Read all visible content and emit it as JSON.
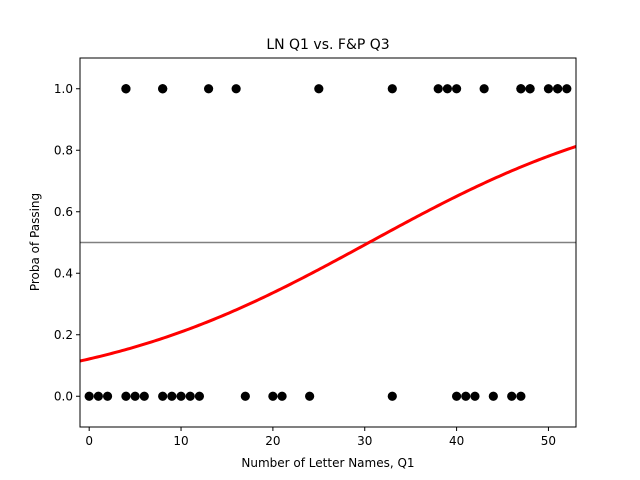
{
  "chart_data": {
    "type": "scatter",
    "title": "LN Q1 vs. F&P Q3",
    "xlabel": "Number of Letter Names, Q1",
    "ylabel": "Proba of Passing",
    "xlim": [
      -1,
      53
    ],
    "ylim": [
      -0.1,
      1.1
    ],
    "xticks": [
      "0",
      "10",
      "20",
      "30",
      "40",
      "50"
    ],
    "yticks": [
      "0.0",
      "0.2",
      "0.4",
      "0.6",
      "0.8",
      "1.0"
    ],
    "grid": false,
    "points": {
      "color": "#000000",
      "x": [
        4,
        4,
        8,
        8,
        13,
        16,
        25,
        33,
        38,
        39,
        40,
        43,
        47,
        47,
        48,
        48,
        50,
        51,
        51,
        52,
        0,
        1,
        2,
        4,
        5,
        6,
        8,
        9,
        10,
        11,
        12,
        17,
        20,
        21,
        24,
        33,
        40,
        41,
        42,
        44,
        46,
        47
      ],
      "y": [
        1,
        1,
        1,
        1,
        1,
        1,
        1,
        1,
        1,
        1,
        1,
        1,
        1,
        1,
        1,
        1,
        1,
        1,
        1,
        1,
        0,
        0,
        0,
        0,
        0,
        0,
        0,
        0,
        0,
        0,
        0,
        0,
        0,
        0,
        0,
        0,
        0,
        0,
        0,
        0,
        0,
        0
      ]
    },
    "logistic_curve": {
      "color": "#ff0000",
      "intercept": -1.98,
      "slope": 0.065
    },
    "reference_line": {
      "y": 0.5,
      "color": "#808080"
    }
  }
}
